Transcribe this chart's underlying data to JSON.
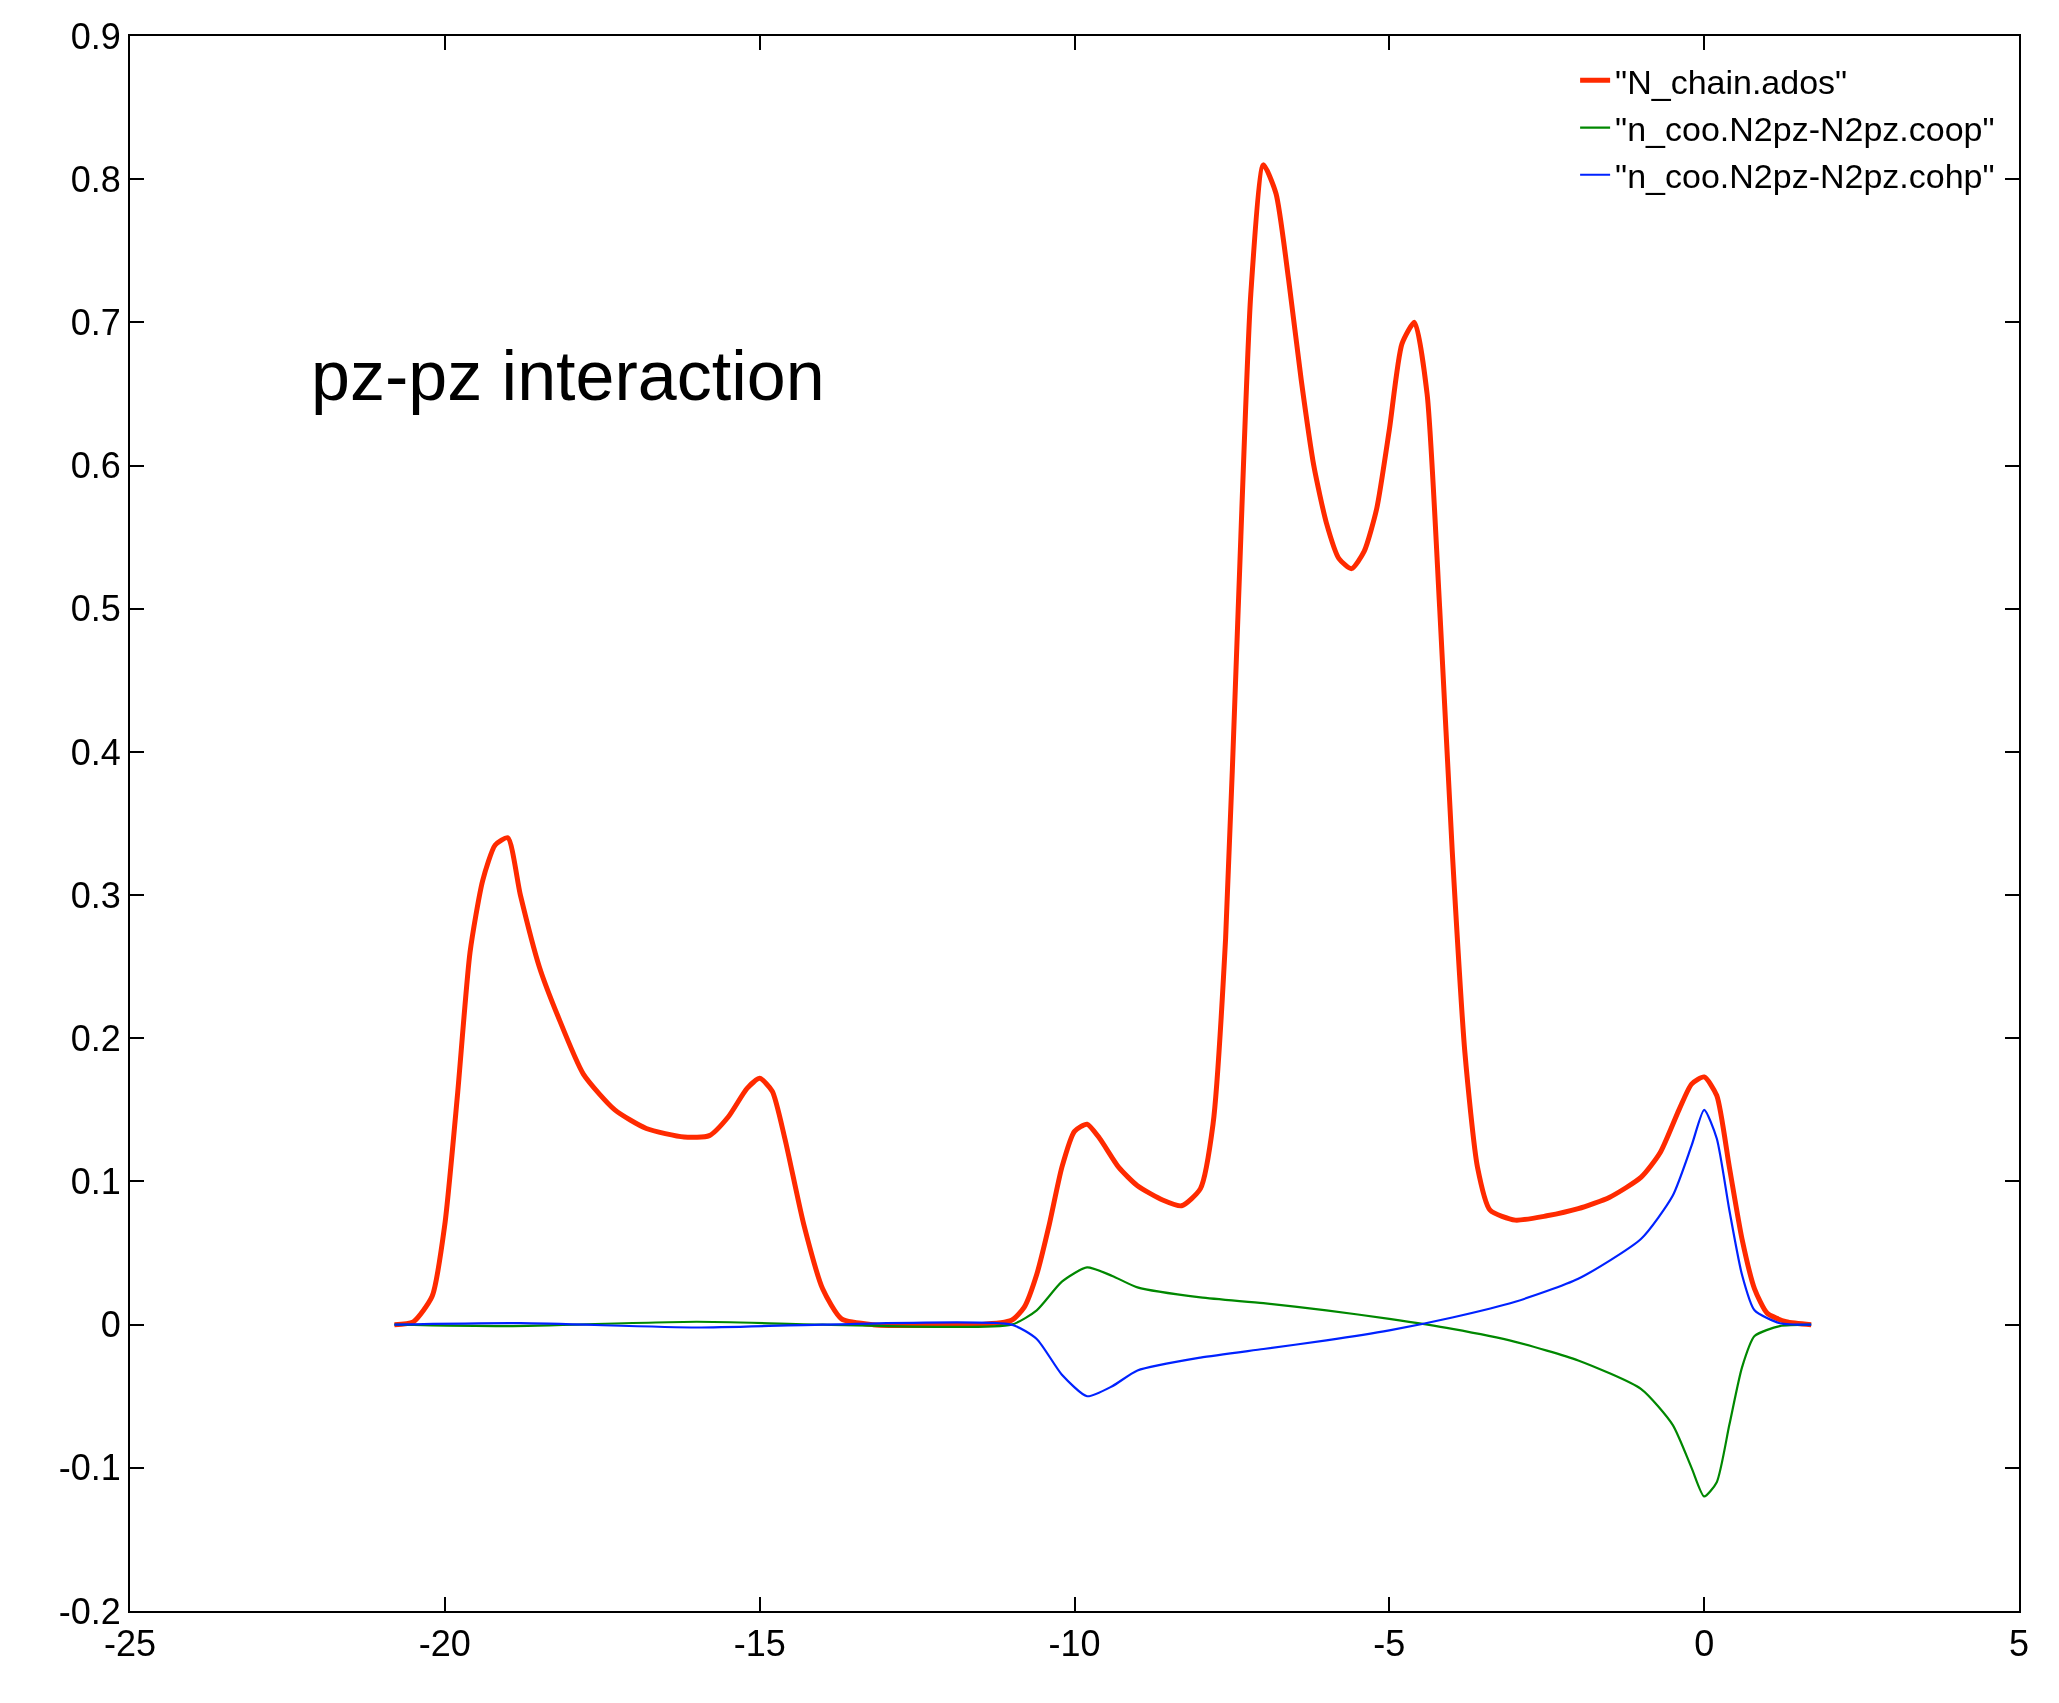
{
  "chart_data": {
    "type": "line",
    "annotations": [
      "pz-pz interaction"
    ],
    "xlim": [
      -25,
      5
    ],
    "xticks": [
      -25,
      -20,
      -15,
      -10,
      -5,
      0,
      5
    ],
    "ylim": [
      -0.2,
      0.9
    ],
    "yticks": [
      -0.2,
      -0.1,
      0,
      0.1,
      0.2,
      0.3,
      0.4,
      0.5,
      0.6,
      0.7,
      0.8,
      0.9
    ],
    "legend": "top right",
    "marker": "none",
    "line_style": "solid",
    "series": [
      {
        "name": "\"N_chain.ados\"",
        "color": "#ff2a00",
        "x": [
          -20.8,
          -20.5,
          -20.2,
          -20.0,
          -19.8,
          -19.6,
          -19.4,
          -19.2,
          -19.0,
          -18.8,
          -18.5,
          -18.2,
          -17.8,
          -17.3,
          -16.8,
          -16.2,
          -15.8,
          -15.5,
          -15.2,
          -15.0,
          -14.8,
          -14.6,
          -14.3,
          -14.0,
          -13.7,
          -13.2,
          -11.5,
          -11.0,
          -10.8,
          -10.6,
          -10.4,
          -10.2,
          -10.0,
          -9.8,
          -9.6,
          -9.3,
          -9.0,
          -8.6,
          -8.3,
          -8.0,
          -7.8,
          -7.6,
          -7.4,
          -7.2,
          -7.0,
          -6.8,
          -6.6,
          -6.4,
          -6.2,
          -6.0,
          -5.8,
          -5.6,
          -5.4,
          -5.2,
          -5.0,
          -4.8,
          -4.6,
          -4.4,
          -4.2,
          -4.0,
          -3.8,
          -3.6,
          -3.4,
          -3.0,
          -2.5,
          -2.0,
          -1.5,
          -1.0,
          -0.7,
          -0.4,
          -0.2,
          0.0,
          0.2,
          0.4,
          0.6,
          0.8,
          1.0,
          1.3,
          1.7
        ],
        "values": [
          0,
          0.002,
          0.02,
          0.07,
          0.16,
          0.26,
          0.31,
          0.335,
          0.34,
          0.3,
          0.25,
          0.215,
          0.175,
          0.15,
          0.137,
          0.131,
          0.132,
          0.145,
          0.165,
          0.172,
          0.163,
          0.13,
          0.07,
          0.025,
          0.004,
          0,
          0,
          0.003,
          0.012,
          0.035,
          0.07,
          0.11,
          0.135,
          0.14,
          0.13,
          0.11,
          0.097,
          0.087,
          0.083,
          0.095,
          0.14,
          0.27,
          0.5,
          0.72,
          0.81,
          0.79,
          0.73,
          0.66,
          0.6,
          0.56,
          0.535,
          0.528,
          0.54,
          0.57,
          0.625,
          0.685,
          0.7,
          0.65,
          0.5,
          0.33,
          0.19,
          0.11,
          0.08,
          0.073,
          0.076,
          0.081,
          0.089,
          0.103,
          0.12,
          0.15,
          0.168,
          0.173,
          0.16,
          0.11,
          0.06,
          0.025,
          0.008,
          0.002,
          0
        ]
      },
      {
        "name": "\"n_coo.N2pz-N2pz.coop\"",
        "color": "#008800",
        "x": [
          -20.8,
          -19.0,
          -16.0,
          -14.0,
          -11.0,
          -10.6,
          -10.2,
          -9.8,
          -9.4,
          -9.0,
          -8.0,
          -7.0,
          -6.0,
          -5.0,
          -4.0,
          -3.0,
          -2.0,
          -1.0,
          -0.5,
          -0.2,
          0.0,
          0.2,
          0.4,
          0.6,
          0.8,
          1.2,
          1.7
        ],
        "values": [
          0,
          -0.001,
          0.002,
          0,
          0,
          0.01,
          0.03,
          0.04,
          0.034,
          0.026,
          0.019,
          0.015,
          0.01,
          0.004,
          -0.003,
          -0.012,
          -0.025,
          -0.045,
          -0.07,
          -0.1,
          -0.12,
          -0.11,
          -0.07,
          -0.03,
          -0.008,
          -0.001,
          0
        ]
      },
      {
        "name": "\"n_coo.N2pz-N2pz.cohp\"",
        "color": "#0022ff",
        "x": [
          -20.8,
          -18.8,
          -16.0,
          -14.0,
          -11.0,
          -10.6,
          -10.2,
          -9.8,
          -9.4,
          -9.0,
          -8.0,
          -7.0,
          -6.0,
          -5.0,
          -4.0,
          -3.0,
          -2.0,
          -1.0,
          -0.5,
          -0.2,
          0.0,
          0.2,
          0.4,
          0.6,
          0.8,
          1.2,
          1.7
        ],
        "values": [
          0,
          0.001,
          -0.002,
          0,
          0,
          -0.01,
          -0.035,
          -0.05,
          -0.043,
          -0.032,
          -0.023,
          -0.017,
          -0.011,
          -0.004,
          0.005,
          0.016,
          0.032,
          0.06,
          0.09,
          0.125,
          0.15,
          0.13,
          0.08,
          0.035,
          0.01,
          0.001,
          0
        ]
      }
    ]
  }
}
